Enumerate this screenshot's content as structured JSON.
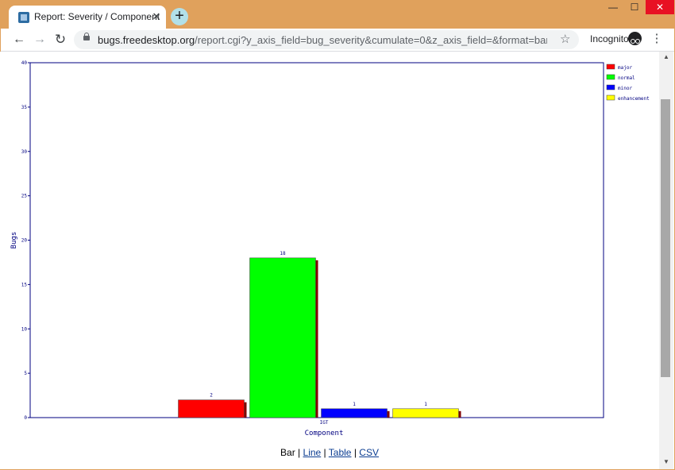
{
  "browser": {
    "tab_title": "Report: Severity / Component",
    "tab_close": "✕",
    "new_tab": "+",
    "url_domain": "bugs.freedesktop.org",
    "url_path": "/report.cgi?y_axis_field=bug_severity&cumulate=0&z_axis_field=&format=bar&x_axis_field...",
    "incognito_label": "Incognito",
    "icons": {
      "back": "back-arrow-icon",
      "forward": "forward-arrow-icon",
      "reload": "reload-icon",
      "lock": "lock-icon",
      "star": "star-icon",
      "menu": "menu-icon",
      "favicon": "favicon-icon"
    }
  },
  "chart_data": {
    "type": "bar",
    "title": "",
    "xlabel": "Component",
    "ylabel": "Bugs",
    "ylim": [
      0,
      40
    ],
    "yticks": [
      0,
      5,
      10,
      15,
      20,
      25,
      30,
      35,
      40
    ],
    "categories": [
      "IGT"
    ],
    "legend_position": "top-right",
    "series": [
      {
        "name": "major",
        "values": [
          2
        ],
        "color": "#ff0000"
      },
      {
        "name": "normal",
        "values": [
          18
        ],
        "color": "#00ff00"
      },
      {
        "name": "minor",
        "values": [
          1
        ],
        "color": "#0000ff"
      },
      {
        "name": "enhancement",
        "values": [
          1
        ],
        "color": "#ffff00"
      }
    ]
  },
  "format_links": {
    "current": "Bar",
    "sep": "|",
    "line": "Line",
    "table": "Table",
    "csv": "CSV"
  }
}
